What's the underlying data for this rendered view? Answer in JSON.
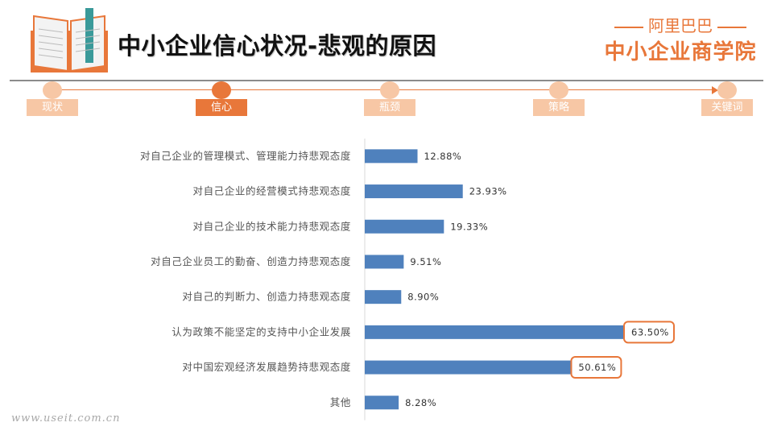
{
  "header": {
    "title": "中小企业信心状况-悲观的原因",
    "brand_top": "阿里巴巴",
    "brand_main": "中小企业商学院",
    "book_icon": "book-icon"
  },
  "steps": [
    {
      "label": "现状",
      "active": false
    },
    {
      "label": "信心",
      "active": true
    },
    {
      "label": "瓶颈",
      "active": false
    },
    {
      "label": "策略",
      "active": false
    },
    {
      "label": "关键词",
      "active": false
    }
  ],
  "colors": {
    "accent": "#e8773a",
    "accent_light": "#f7c7a5",
    "bar": "#4f81bd"
  },
  "chart_data": {
    "type": "bar",
    "orientation": "horizontal",
    "categories": [
      "对自己企业的管理模式、管理能力持悲观态度",
      "对自己企业的经营模式持悲观态度",
      "对自己企业的技术能力持悲观态度",
      "对自己企业员工的勤奋、创造力持悲观态度",
      "对自己的判断力、创造力持悲观态度",
      "认为政策不能坚定的支持中小企业发展",
      "对中国宏观经济发展趋势持悲观态度",
      "其他"
    ],
    "values": [
      12.88,
      23.93,
      19.33,
      9.51,
      8.9,
      63.5,
      50.61,
      8.28
    ],
    "data_labels": [
      "12.88%",
      "23.93%",
      "19.33%",
      "9.51%",
      "8.90%",
      "63.50%",
      "50.61%",
      "8.28%"
    ],
    "highlighted": [
      5,
      6
    ],
    "xlim": [
      0,
      70
    ],
    "grid": false,
    "legend": "none"
  },
  "footer": {
    "watermark": "www.useit.com.cn"
  }
}
